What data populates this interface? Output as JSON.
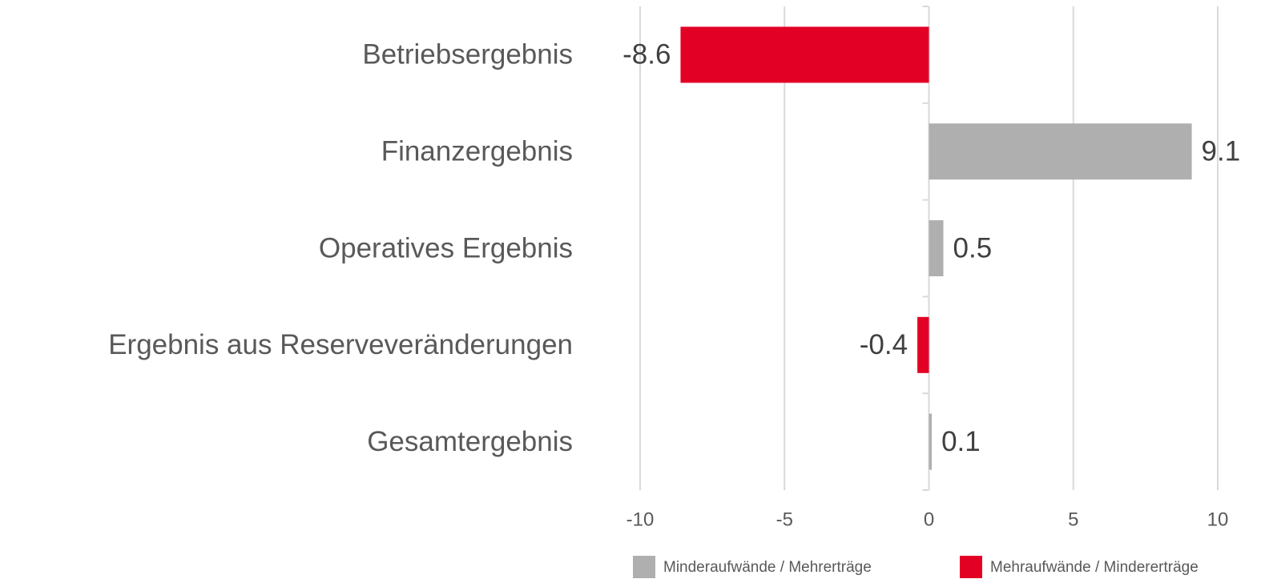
{
  "chart_data": {
    "type": "bar",
    "orientation": "horizontal",
    "categories": [
      "Betriebsergebnis",
      "Finanzergebnis",
      "Operatives Ergebnis",
      "Ergebnis aus Reserveveränderungen",
      "Gesamtergebnis"
    ],
    "series": [
      {
        "name": "Minderaufwände / Mehrerträge",
        "color": "#afafaf",
        "values": [
          null,
          9.1,
          0.5,
          null,
          0.1
        ]
      },
      {
        "name": "Mehraufwände / Mindererträge",
        "color": "#e30025",
        "values": [
          -8.6,
          null,
          null,
          -0.4,
          null
        ]
      }
    ],
    "xlim": [
      -10,
      10
    ],
    "xticks": [
      -10,
      -5,
      0,
      5,
      10
    ],
    "grid": true,
    "legend": "bottom"
  }
}
